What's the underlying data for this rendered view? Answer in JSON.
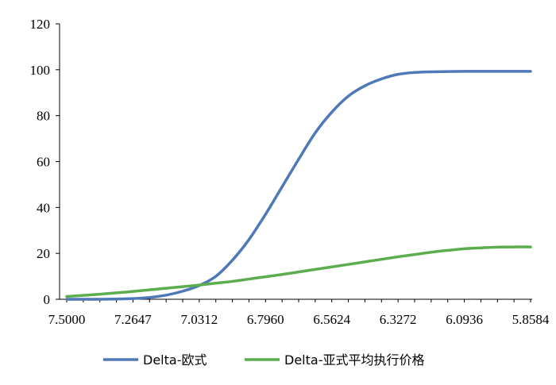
{
  "chart_data": {
    "type": "line",
    "x": [
      7.5,
      7.4413,
      7.3827,
      7.324,
      7.2647,
      7.2061,
      7.1474,
      7.0881,
      7.0312,
      6.9722,
      6.9136,
      6.855,
      6.796,
      6.7374,
      6.6788,
      6.621,
      6.5624,
      6.5038,
      6.4452,
      6.3858,
      6.3272,
      6.2686,
      6.21,
      6.1522,
      6.0936,
      6.035,
      5.9764,
      5.9178,
      5.8584
    ],
    "x_ticks": [
      "7.5000",
      "7.2647",
      "7.0312",
      "6.7960",
      "6.5624",
      "6.3272",
      "6.0936",
      "5.8584"
    ],
    "x_reversed": true,
    "ylim": [
      0,
      120
    ],
    "y_ticks": [
      "0",
      "20",
      "40",
      "60",
      "80",
      "100",
      "120"
    ],
    "grid": false,
    "legend": "bottom",
    "series": [
      {
        "name": "Delta-欧式",
        "color": "#4f78b8",
        "values": [
          0,
          0,
          0,
          0.1,
          0.3,
          0.8,
          1.8,
          3.5,
          6,
          10,
          17,
          26,
          37,
          49,
          61,
          72.5,
          81.5,
          88.5,
          93,
          96,
          98,
          98.8,
          99.1,
          99.2,
          99.3,
          99.3,
          99.3,
          99.3,
          99.3
        ]
      },
      {
        "name": "Delta-亚式平均执行价格",
        "color": "#5bad4e",
        "values": [
          1.2,
          1.7,
          2.2,
          2.8,
          3.4,
          4.1,
          4.8,
          5.5,
          6.2,
          7.0,
          7.8,
          8.8,
          9.8,
          10.8,
          11.9,
          13.0,
          14.1,
          15.2,
          16.3,
          17.4,
          18.5,
          19.5,
          20.5,
          21.3,
          22.0,
          22.4,
          22.7,
          22.8,
          22.8
        ]
      }
    ]
  }
}
